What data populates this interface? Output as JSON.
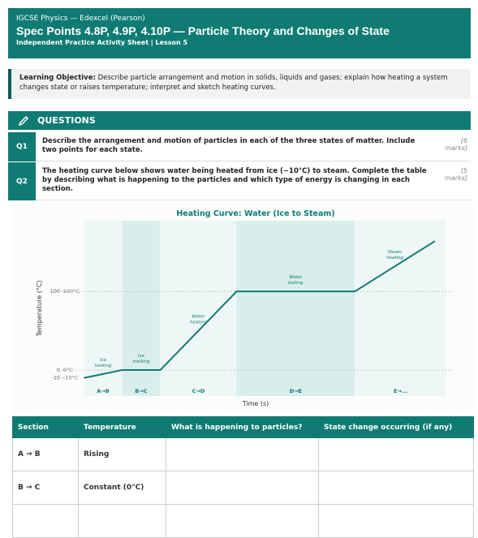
{
  "header": {
    "course": "IGCSE Physics — Edexcel (Pearson)",
    "title": "Spec Points 4.8P, 4.9P, 4.10P — Particle Theory and Changes of State",
    "subtitle": "Independent Practice Activity Sheet | Lesson 5"
  },
  "objective": {
    "label": "Learning Objective:",
    "text": "Describe particle arrangement and motion in solids, liquids and gases; explain how heating a system changes state or raises temperature; interpret and sketch heating curves."
  },
  "questions": {
    "heading": "QUESTIONS",
    "items": [
      {
        "number": "Q1",
        "text": "Describe the arrangement and motion of particles in each of the three states of matter. Include two points for each state.",
        "marks": "[6 marks]"
      },
      {
        "number": "Q2",
        "text": "The heating curve below shows water being heated from ice (−10°C) to steam. Complete the table by describing what is happening to the particles and which type of energy is changing in each section.",
        "marks": "[5 marks]"
      }
    ]
  },
  "heating_curve": {
    "title": "Heating Curve: Water (Ice to Steam)",
    "x_label": "Time (s)",
    "y_label": "Temperature (°C)",
    "xlim": [
      -5,
      95
    ],
    "ylim": [
      -33,
      190
    ],
    "yticks": [
      -10,
      0,
      100
    ],
    "reference_lines": [
      {
        "value": 100,
        "label": "100°C"
      },
      {
        "value": 0,
        "label": "0°C"
      },
      {
        "value": -10,
        "label": "-10°C"
      }
    ],
    "x": [
      0,
      10,
      20,
      40,
      71,
      92
    ],
    "y": [
      -10,
      0,
      0,
      100,
      100,
      164
    ],
    "segments": [
      {
        "label": "A→B",
        "from": 0,
        "to": 10,
        "annotation": [
          "Ice",
          "heating"
        ]
      },
      {
        "label": "B→C",
        "from": 10,
        "to": 20,
        "annotation": [
          "Ice",
          "melting"
        ]
      },
      {
        "label": "C→D",
        "from": 20,
        "to": 40,
        "annotation": [
          "Water",
          "heating"
        ]
      },
      {
        "label": "D→E",
        "from": 40,
        "to": 71,
        "annotation": [
          "Water",
          "boiling"
        ]
      },
      {
        "label": "E→...",
        "from": 71,
        "to": 95,
        "annotation": [
          "Steam",
          "heating"
        ]
      }
    ]
  },
  "table": {
    "columns": [
      "Section",
      "Temperature",
      "What is happening to particles?",
      "State change occurring (if any)"
    ],
    "rows": [
      [
        "A → B",
        "Rising"
      ],
      [
        "B → C",
        "Constant (0°C)"
      ]
    ]
  }
}
